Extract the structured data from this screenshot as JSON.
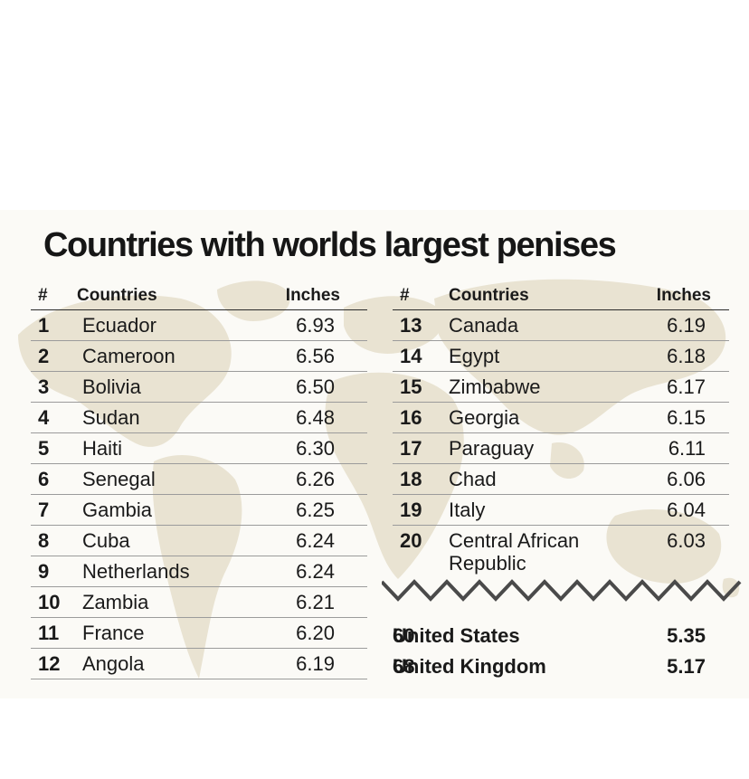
{
  "title": "Countries with worlds largest penises",
  "headers": {
    "num": "#",
    "country": "Countries",
    "value": "Inches"
  },
  "left_rows": [
    {
      "rank": "1",
      "country": "Ecuador",
      "inches": "6.93"
    },
    {
      "rank": "2",
      "country": "Cameroon",
      "inches": "6.56"
    },
    {
      "rank": "3",
      "country": "Bolivia",
      "inches": "6.50"
    },
    {
      "rank": "4",
      "country": "Sudan",
      "inches": "6.48"
    },
    {
      "rank": "5",
      "country": "Haiti",
      "inches": "6.30"
    },
    {
      "rank": "6",
      "country": "Senegal",
      "inches": "6.26"
    },
    {
      "rank": "7",
      "country": "Gambia",
      "inches": "6.25"
    },
    {
      "rank": "8",
      "country": "Cuba",
      "inches": "6.24"
    },
    {
      "rank": "9",
      "country": "Netherlands",
      "inches": "6.24"
    },
    {
      "rank": "10",
      "country": "Zambia",
      "inches": "6.21"
    },
    {
      "rank": "11",
      "country": "France",
      "inches": "6.20"
    },
    {
      "rank": "12",
      "country": "Angola",
      "inches": "6.19"
    }
  ],
  "right_rows": [
    {
      "rank": "13",
      "country": "Canada",
      "inches": "6.19"
    },
    {
      "rank": "14",
      "country": "Egypt",
      "inches": "6.18"
    },
    {
      "rank": "15",
      "country": "Zimbabwe",
      "inches": "6.17"
    },
    {
      "rank": "16",
      "country": "Georgia",
      "inches": "6.15"
    },
    {
      "rank": "17",
      "country": "Paraguay",
      "inches": "6.11"
    },
    {
      "rank": "18",
      "country": "Chad",
      "inches": "6.06"
    },
    {
      "rank": "19",
      "country": "Italy",
      "inches": "6.04"
    },
    {
      "rank": "20",
      "country": "Central African Republic",
      "inches": "6.03"
    }
  ],
  "extra_rows": [
    {
      "rank": "60",
      "country": "United States",
      "inches": "5.35"
    },
    {
      "rank": "68",
      "country": "United Kingdom",
      "inches": "5.17"
    }
  ],
  "colors": {
    "map": "#e9e3d2",
    "background": "#fbfaf6",
    "zigzag": "#4a4a4a"
  }
}
